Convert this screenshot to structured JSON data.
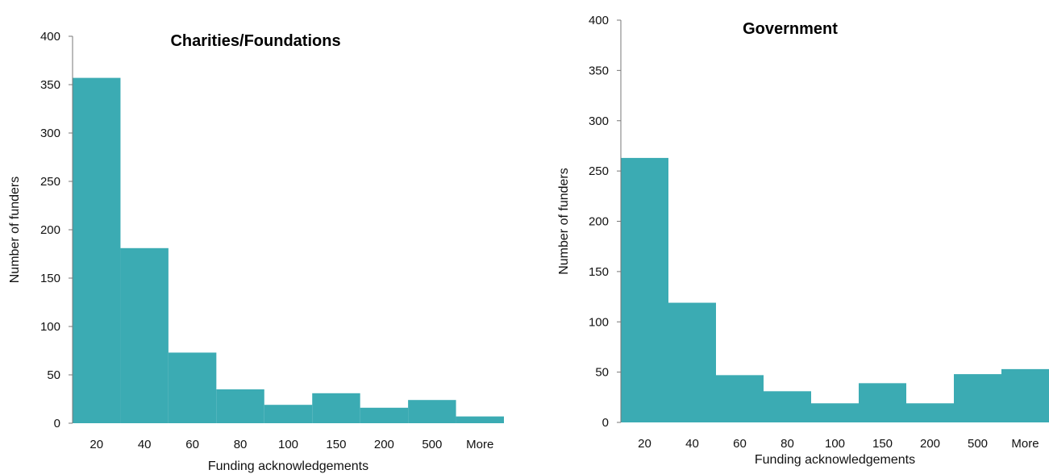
{
  "chart_data": [
    {
      "type": "bar",
      "title": "Charities/Foundations",
      "xlabel": "Funding acknowledgements",
      "ylabel": "Number of funders",
      "categories": [
        "20",
        "40",
        "60",
        "80",
        "100",
        "150",
        "200",
        "500",
        "More"
      ],
      "values": [
        357,
        181,
        73,
        35,
        19,
        31,
        16,
        24,
        7
      ],
      "ylim": [
        0,
        400
      ],
      "yticks": [
        0,
        50,
        100,
        150,
        200,
        250,
        300,
        350,
        400
      ],
      "color": "#3BABB3",
      "grid": false
    },
    {
      "type": "bar",
      "title": "Government",
      "xlabel": "Funding acknowledgements",
      "ylabel": "Number of funders",
      "categories": [
        "20",
        "40",
        "60",
        "80",
        "100",
        "150",
        "200",
        "500",
        "More"
      ],
      "values": [
        263,
        119,
        47,
        31,
        19,
        39,
        19,
        48,
        53
      ],
      "ylim": [
        0,
        400
      ],
      "yticks": [
        0,
        50,
        100,
        150,
        200,
        250,
        300,
        350,
        400
      ],
      "color": "#3BABB3",
      "grid": false
    }
  ]
}
